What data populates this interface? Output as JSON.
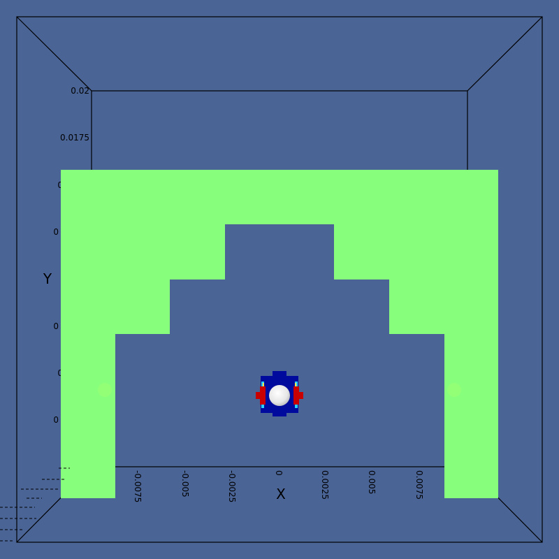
{
  "viewport": {
    "background_color": "#4a6496",
    "box_line_color": "#000000",
    "geometry_color": "#87ff7d",
    "particle_colors": {
      "body": "#000a9c",
      "high": "#c80000",
      "mid": "#2ad2ff",
      "sphere": "#ffffff"
    }
  },
  "axes": {
    "y_title": "Y",
    "x_title": "X",
    "y_ticks": [
      "0.02",
      "0.0175",
      "0",
      "0",
      "0",
      "0",
      "0"
    ],
    "x_ticks": [
      "-0.0075",
      "-0.005",
      "-0.0025",
      "0",
      "0.0025",
      "0.005",
      "0.0075"
    ]
  }
}
